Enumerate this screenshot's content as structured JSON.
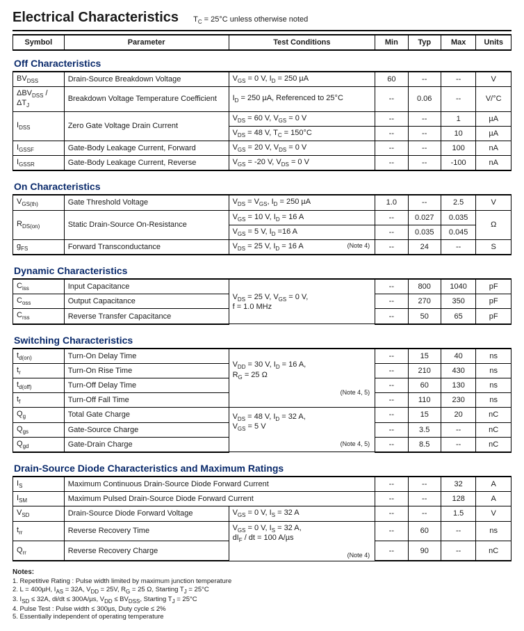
{
  "title": "Electrical Characteristics",
  "title_condition": "T_C = 25°C unless otherwise noted",
  "headers": {
    "symbol": "Symbol",
    "parameter": "Parameter",
    "conditions": "Test Conditions",
    "min": "Min",
    "typ": "Typ",
    "max": "Max",
    "units": "Units"
  },
  "sections": [
    {
      "title": "Off Characteristics",
      "rows": [
        {
          "sym": "BV_DSS",
          "param": "Drain-Source Breakdown Voltage",
          "cond": "V_GS = 0 V, I_D = 250 µA",
          "min": "60",
          "typ": "--",
          "max": "--",
          "unit": "V"
        },
        {
          "sym": "ΔBV_DSS / ΔT_J",
          "param": "Breakdown Voltage Temperature Coefficient",
          "cond": "I_D = 250 µA, Referenced to 25°C",
          "min": "--",
          "typ": "0.06",
          "max": "--",
          "unit": "V/°C"
        },
        {
          "sym": "I_DSS",
          "param": "Zero Gate Voltage Drain Current",
          "cond": "V_DS = 60 V, V_GS = 0 V",
          "min": "--",
          "typ": "--",
          "max": "1",
          "unit": "µA",
          "rowspan_sym": 2,
          "rowspan_param": 2
        },
        {
          "cond": "V_DS = 48 V, T_C = 150°C",
          "min": "--",
          "typ": "--",
          "max": "10",
          "unit": "µA"
        },
        {
          "sym": "I_GSSF",
          "param": "Gate-Body Leakage Current, Forward",
          "cond": "V_GS = 20 V, V_DS = 0 V",
          "min": "--",
          "typ": "--",
          "max": "100",
          "unit": "nA"
        },
        {
          "sym": "I_GSSR",
          "param": "Gate-Body Leakage Current, Reverse",
          "cond": "V_GS = -20 V, V_DS = 0 V",
          "min": "--",
          "typ": "--",
          "max": "-100",
          "unit": "nA"
        }
      ]
    },
    {
      "title": "On Characteristics",
      "rows": [
        {
          "sym": "V_GS(th)",
          "param": "Gate Threshold Voltage",
          "cond": "V_DS = V_GS, I_D = 250 µA",
          "min": "1.0",
          "typ": "--",
          "max": "2.5",
          "unit": "V"
        },
        {
          "sym": "R_DS(on)",
          "param": "Static Drain-Source On-Resistance",
          "cond": "V_GS = 10 V, I_D = 16 A",
          "min": "--",
          "typ": "0.027",
          "max": "0.035",
          "unit": "Ω",
          "rowspan_sym": 2,
          "rowspan_param": 2,
          "rowspan_unit": 2
        },
        {
          "cond": "V_GS = 5 V, I_D =16 A",
          "min": "--",
          "typ": "0.035",
          "max": "0.045"
        },
        {
          "sym": "g_FS",
          "param": "Forward Transconductance",
          "cond": "V_DS = 25 V, I_D = 16 A",
          "note": "(Note 4)",
          "min": "--",
          "typ": "24",
          "max": "--",
          "unit": "S"
        }
      ]
    },
    {
      "title": "Dynamic Characteristics",
      "rows": [
        {
          "sym": "C_iss",
          "param": "Input Capacitance",
          "cond": "V_DS = 25 V, V_GS = 0 V,\nf = 1.0 MHz",
          "rowspan_cond": 3,
          "min": "--",
          "typ": "800",
          "max": "1040",
          "unit": "pF"
        },
        {
          "sym": "C_oss",
          "param": "Output Capacitance",
          "min": "--",
          "typ": "270",
          "max": "350",
          "unit": "pF"
        },
        {
          "sym": "C_rss",
          "param": "Reverse Transfer Capacitance",
          "min": "--",
          "typ": "50",
          "max": "65",
          "unit": "pF"
        }
      ]
    },
    {
      "title": "Switching Characteristics",
      "rows": [
        {
          "sym": "t_d(on)",
          "param": "Turn-On Delay Time",
          "cond": "V_DD = 30 V, I_D = 16 A,\nR_G = 25 Ω",
          "rowspan_cond": 4,
          "note_last": "(Note 4, 5)",
          "min": "--",
          "typ": "15",
          "max": "40",
          "unit": "ns"
        },
        {
          "sym": "t_r",
          "param": "Turn-On Rise Time",
          "min": "--",
          "typ": "210",
          "max": "430",
          "unit": "ns"
        },
        {
          "sym": "t_d(off)",
          "param": "Turn-Off Delay Time",
          "min": "--",
          "typ": "60",
          "max": "130",
          "unit": "ns"
        },
        {
          "sym": "t_f",
          "param": "Turn-Off Fall Time",
          "min": "--",
          "typ": "110",
          "max": "230",
          "unit": "ns"
        },
        {
          "sym": "Q_g",
          "param": "Total Gate Charge",
          "cond": "V_DS = 48 V, I_D = 32 A,\nV_GS = 5 V",
          "rowspan_cond": 3,
          "note_last": "(Note 4, 5)",
          "min": "--",
          "typ": "15",
          "max": "20",
          "unit": "nC"
        },
        {
          "sym": "Q_gs",
          "param": "Gate-Source Charge",
          "min": "--",
          "typ": "3.5",
          "max": "--",
          "unit": "nC"
        },
        {
          "sym": "Q_gd",
          "param": "Gate-Drain Charge",
          "min": "--",
          "typ": "8.5",
          "max": "--",
          "unit": "nC"
        }
      ]
    },
    {
      "title": "Drain-Source Diode Characteristics and Maximum Ratings",
      "rows": [
        {
          "sym": "I_S",
          "param": "Maximum Continuous Drain-Source Diode Forward Current",
          "colspan_param": 2,
          "min": "--",
          "typ": "--",
          "max": "32",
          "unit": "A"
        },
        {
          "sym": "I_SM",
          "param": "Maximum Pulsed Drain-Source Diode Forward Current",
          "colspan_param": 2,
          "min": "--",
          "typ": "--",
          "max": "128",
          "unit": "A"
        },
        {
          "sym": "V_SD",
          "param": "Drain-Source Diode Forward Voltage",
          "cond": "V_GS = 0 V, I_S = 32 A",
          "min": "--",
          "typ": "--",
          "max": "1.5",
          "unit": "V"
        },
        {
          "sym": "t_rr",
          "param": "Reverse Recovery Time",
          "cond": "V_GS = 0 V, I_S = 32 A,\ndI_F / dt = 100 A/µs",
          "rowspan_cond": 2,
          "note_last": "(Note 4)",
          "min": "--",
          "typ": "60",
          "max": "--",
          "unit": "ns"
        },
        {
          "sym": "Q_rr",
          "param": "Reverse Recovery Charge",
          "min": "--",
          "typ": "90",
          "max": "--",
          "unit": "nC"
        }
      ]
    }
  ],
  "notes_title": "Notes:",
  "notes": [
    "1. Repetitive Rating : Pulse width limited by maximum junction temperature",
    "2. L = 400µH, I_AS = 32A, V_DD = 25V, R_G = 25 Ω, Starting  T_J = 25°C",
    "3. I_SD ≤ 32A, di/dt ≤ 300A/µs, V_DD ≤ BV_DSS, Starting  T_J = 25°C",
    "4. Pulse Test : Pulse width ≤ 300µs, Duty cycle ≤ 2%",
    "5. Essentially independent of operating temperature"
  ],
  "colors": {
    "section_title": "#0a2a6b",
    "text": "#1a1a1a",
    "rule": "#000000"
  }
}
